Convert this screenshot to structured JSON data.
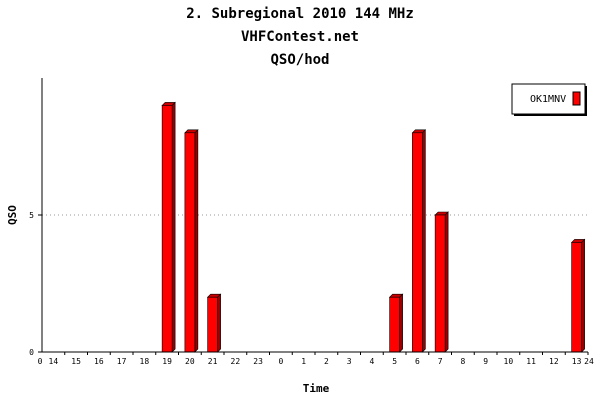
{
  "titles": {
    "line1": "2. Subregional 2010 144 MHz",
    "line2": "VHFContest.net",
    "line3": "QSO/hod"
  },
  "chart_data": {
    "type": "bar",
    "x_range_labels": {
      "start": "0",
      "end": "24"
    },
    "categories": [
      "14",
      "15",
      "16",
      "17",
      "18",
      "19",
      "20",
      "21",
      "22",
      "23",
      "0",
      "1",
      "2",
      "3",
      "4",
      "5",
      "6",
      "7",
      "8",
      "9",
      "10",
      "11",
      "12",
      "13"
    ],
    "series": [
      {
        "name": "OK1MNV",
        "color": "#ff0000",
        "values": [
          0,
          0,
          0,
          0,
          0,
          9,
          8,
          2,
          0,
          0,
          0,
          0,
          0,
          0,
          0,
          2,
          8,
          5,
          0,
          0,
          0,
          0,
          0,
          4
        ]
      }
    ],
    "xlabel": "Time",
    "ylabel": "QSO",
    "y_ticks": [
      0,
      5
    ],
    "ylim": [
      0,
      10
    ],
    "grid": "horizontal-dotted",
    "legend_position": "top-right"
  }
}
